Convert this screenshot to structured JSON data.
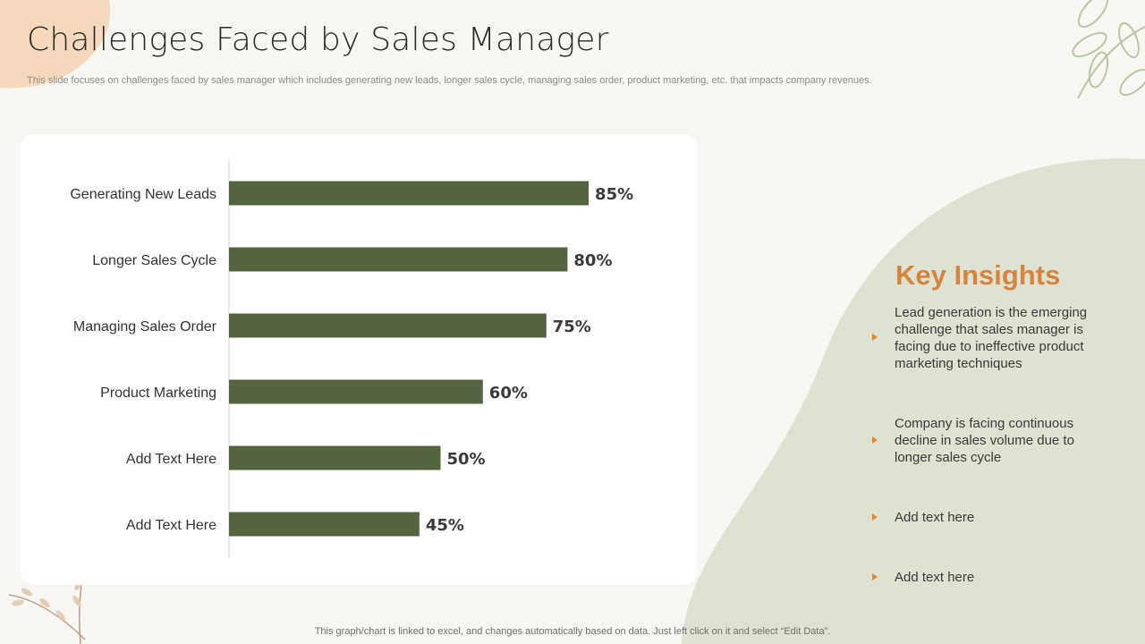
{
  "slide": {
    "title": "Challenges Faced by Sales Manager",
    "subtitle": "This slide focuses on challenges faced by sales manager which includes generating new leads, longer sales cycle, managing sales order, product marketing, etc. that impacts company revenues.",
    "footer": "This graph/chart is linked to excel,  and changes automatically based on data. Just left click on it and select “Edit Data”."
  },
  "chart_data": {
    "type": "bar",
    "orientation": "horizontal",
    "title": "",
    "xlabel": "",
    "ylabel": "",
    "xlim": [
      0,
      100
    ],
    "grid": false,
    "categories": [
      "Generating New Leads",
      "Longer Sales Cycle",
      "Managing Sales Order",
      "Product Marketing",
      "Add Text Here",
      "Add Text Here"
    ],
    "values": [
      85,
      80,
      75,
      60,
      50,
      45
    ],
    "value_labels": [
      "85%",
      "80%",
      "75%",
      "60%",
      "50%",
      "45%"
    ],
    "bar_color": "#546340"
  },
  "insights": {
    "title": "Key Insights",
    "items": [
      {
        "text": "Lead generation is the emerging challenge that sales manager is facing due to ineffective product marketing techniques"
      },
      {
        "text": "Company is facing continuous decline in sales volume due to longer sales cycle"
      },
      {
        "text": "Add text here"
      },
      {
        "text": "Add text here"
      }
    ]
  },
  "colors": {
    "accent": "#d9843d",
    "bar": "#546340",
    "blob_green": "#dde2d2",
    "blob_peach": "#f5d9bd",
    "background": "#f7f6f3"
  }
}
